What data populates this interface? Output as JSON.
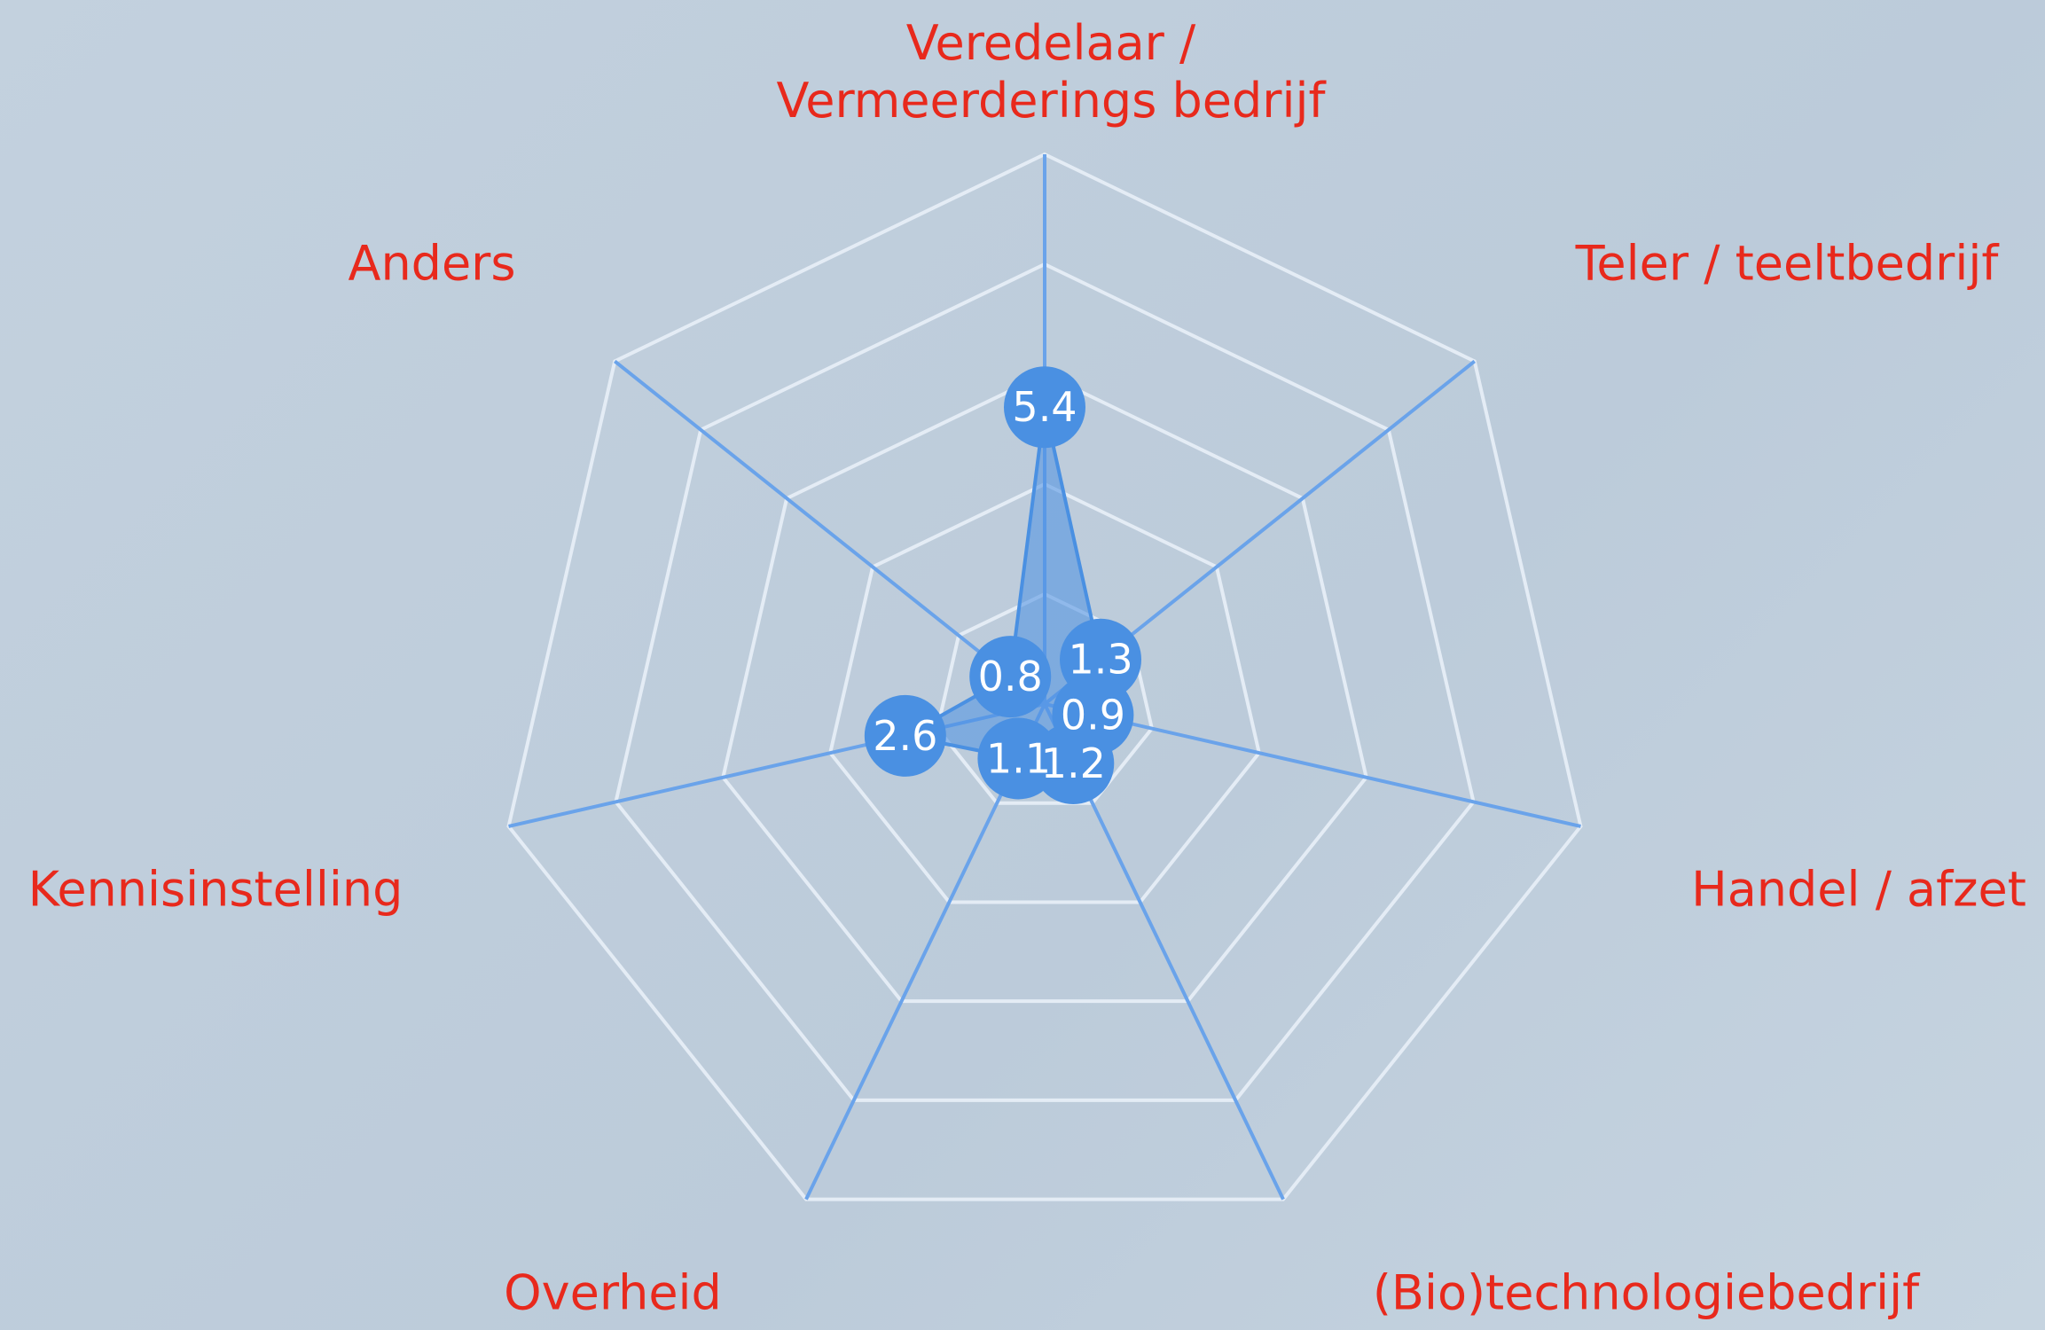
{
  "chart_data": {
    "type": "radar",
    "categories": [
      "Veredelaar / Vermeerderings bedrijf",
      "Teler / teeltbedrijf",
      "Handel / afzet",
      "(Bio)technologiebedrijf",
      "Overheid",
      "Kennisinstelling",
      "Anders"
    ],
    "values": [
      5.4,
      1.3,
      0.9,
      1.2,
      1.1,
      2.6,
      0.8
    ],
    "color": "#4a90e2",
    "label_color": "#e8291c",
    "rlim": [
      0,
      10
    ],
    "rticks": [
      2,
      4,
      6,
      8,
      10
    ],
    "grid": true
  }
}
